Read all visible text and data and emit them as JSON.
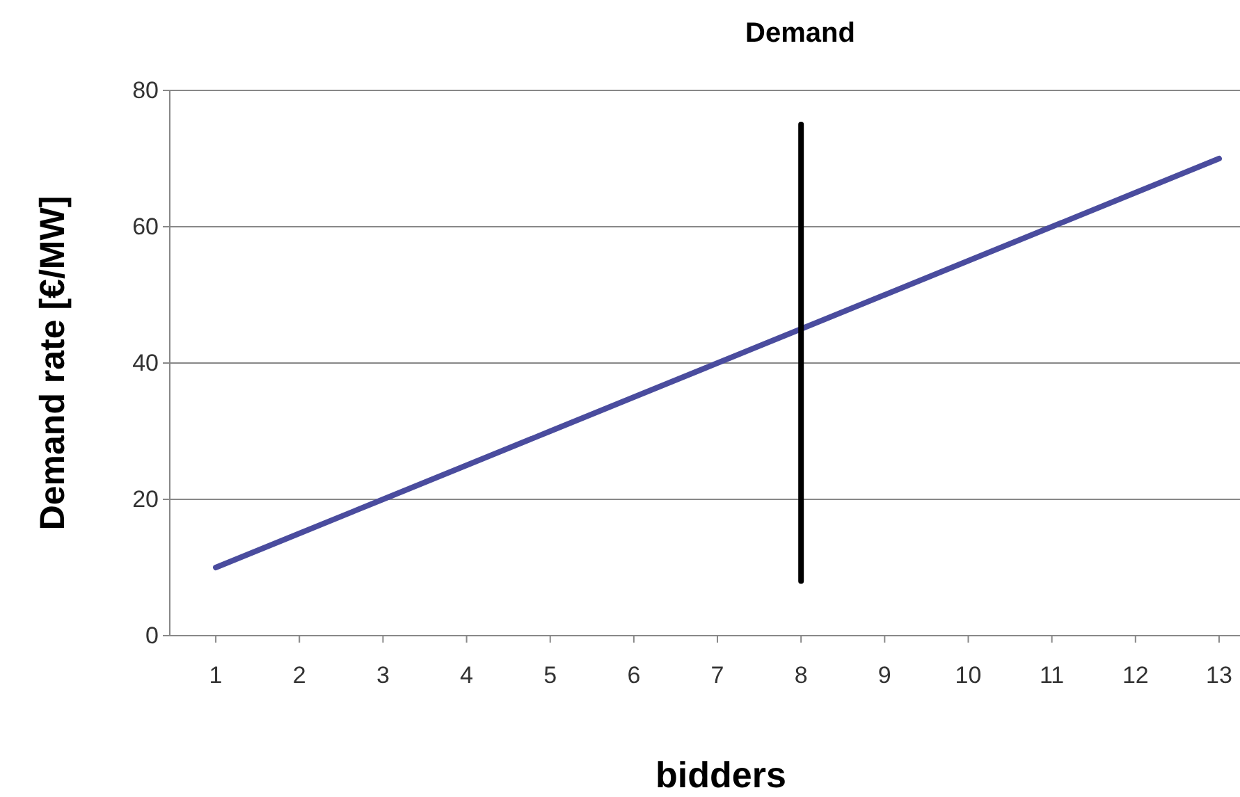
{
  "chart_data": {
    "type": "line",
    "title": "Demand",
    "xlabel": "bidders",
    "ylabel": "Demand rate [€/MW]",
    "x": [
      1,
      2,
      3,
      4,
      5,
      6,
      7,
      8,
      9,
      10,
      11,
      12,
      13
    ],
    "series": [
      {
        "color": "#4a4c9e",
        "values": [
          10,
          15,
          20,
          25,
          30,
          35,
          40,
          45,
          50,
          55,
          60,
          65,
          70
        ]
      },
      {
        "color": "#000000",
        "x": [
          8,
          8
        ],
        "values": [
          8,
          75
        ]
      }
    ],
    "xlim": [
      0.45,
      13.25
    ],
    "xticks": [
      1,
      2,
      3,
      4,
      5,
      6,
      7,
      8,
      9,
      10,
      11,
      12,
      13
    ],
    "ylim": [
      0,
      80
    ],
    "yticks": [
      0,
      20,
      40,
      60,
      80
    ],
    "grid": "y",
    "marker": "none",
    "line_style": "solid"
  }
}
